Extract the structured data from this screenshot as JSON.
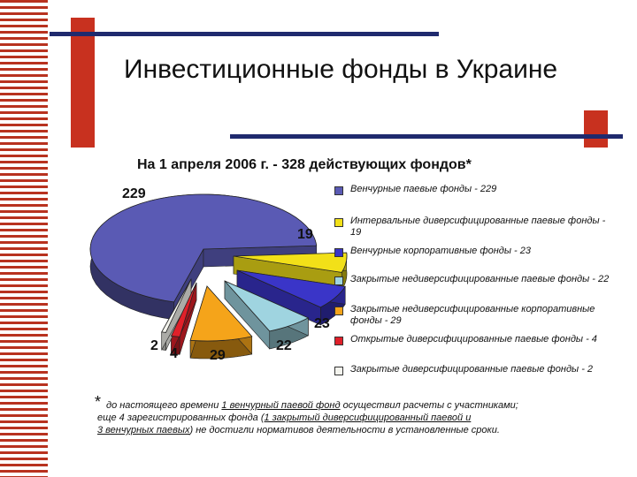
{
  "slide": {
    "title": "Инвестиционные фонды в Украине",
    "accent_red": "#c8311f",
    "accent_blue": "#1f2a6e"
  },
  "chart_data": {
    "type": "pie",
    "title": "На 1 апреля 2006 г. - 328 действующих фондов*",
    "total": 328,
    "legend_position": "right",
    "slices": [
      {
        "label": "Венчурные паевые фонды - 229",
        "value": 229,
        "color": "#5a5ab4"
      },
      {
        "label": "Интервальные диверсифицированные паевые фонды - 19",
        "value": 19,
        "color": "#f2e018"
      },
      {
        "label": "Венчурные корпоративные фонды - 23",
        "value": 23,
        "color": "#3a35c8"
      },
      {
        "label": "Закрытые недиверсифицированные паевые фонды - 22",
        "value": 22,
        "color": "#9fd4e0"
      },
      {
        "label": "Закрытые недиверсифицированные корпоративные фонды - 29",
        "value": 29,
        "color": "#f5a41a"
      },
      {
        "label": "Открытые диверсифицированные паевые фонды - 4",
        "value": 4,
        "color": "#e0202a"
      },
      {
        "label": "Закрытые диверсифицированные паевые фонды - 2",
        "value": 2,
        "color": "#f4f4ee"
      }
    ]
  },
  "footnote": {
    "star": "*",
    "t1": "до настоящего времени ",
    "u1": "1 венчурный паевой фонд",
    "t2": " осуществил расчеты с участниками;",
    "t3": "еще 4 зарегистрированных фонда (",
    "u2": "1 закрытый диверсифицированный паевой и",
    "u3": "3  венчурных паевых",
    "t4": ") не достигли нормативов деятельности в установленные сроки."
  }
}
